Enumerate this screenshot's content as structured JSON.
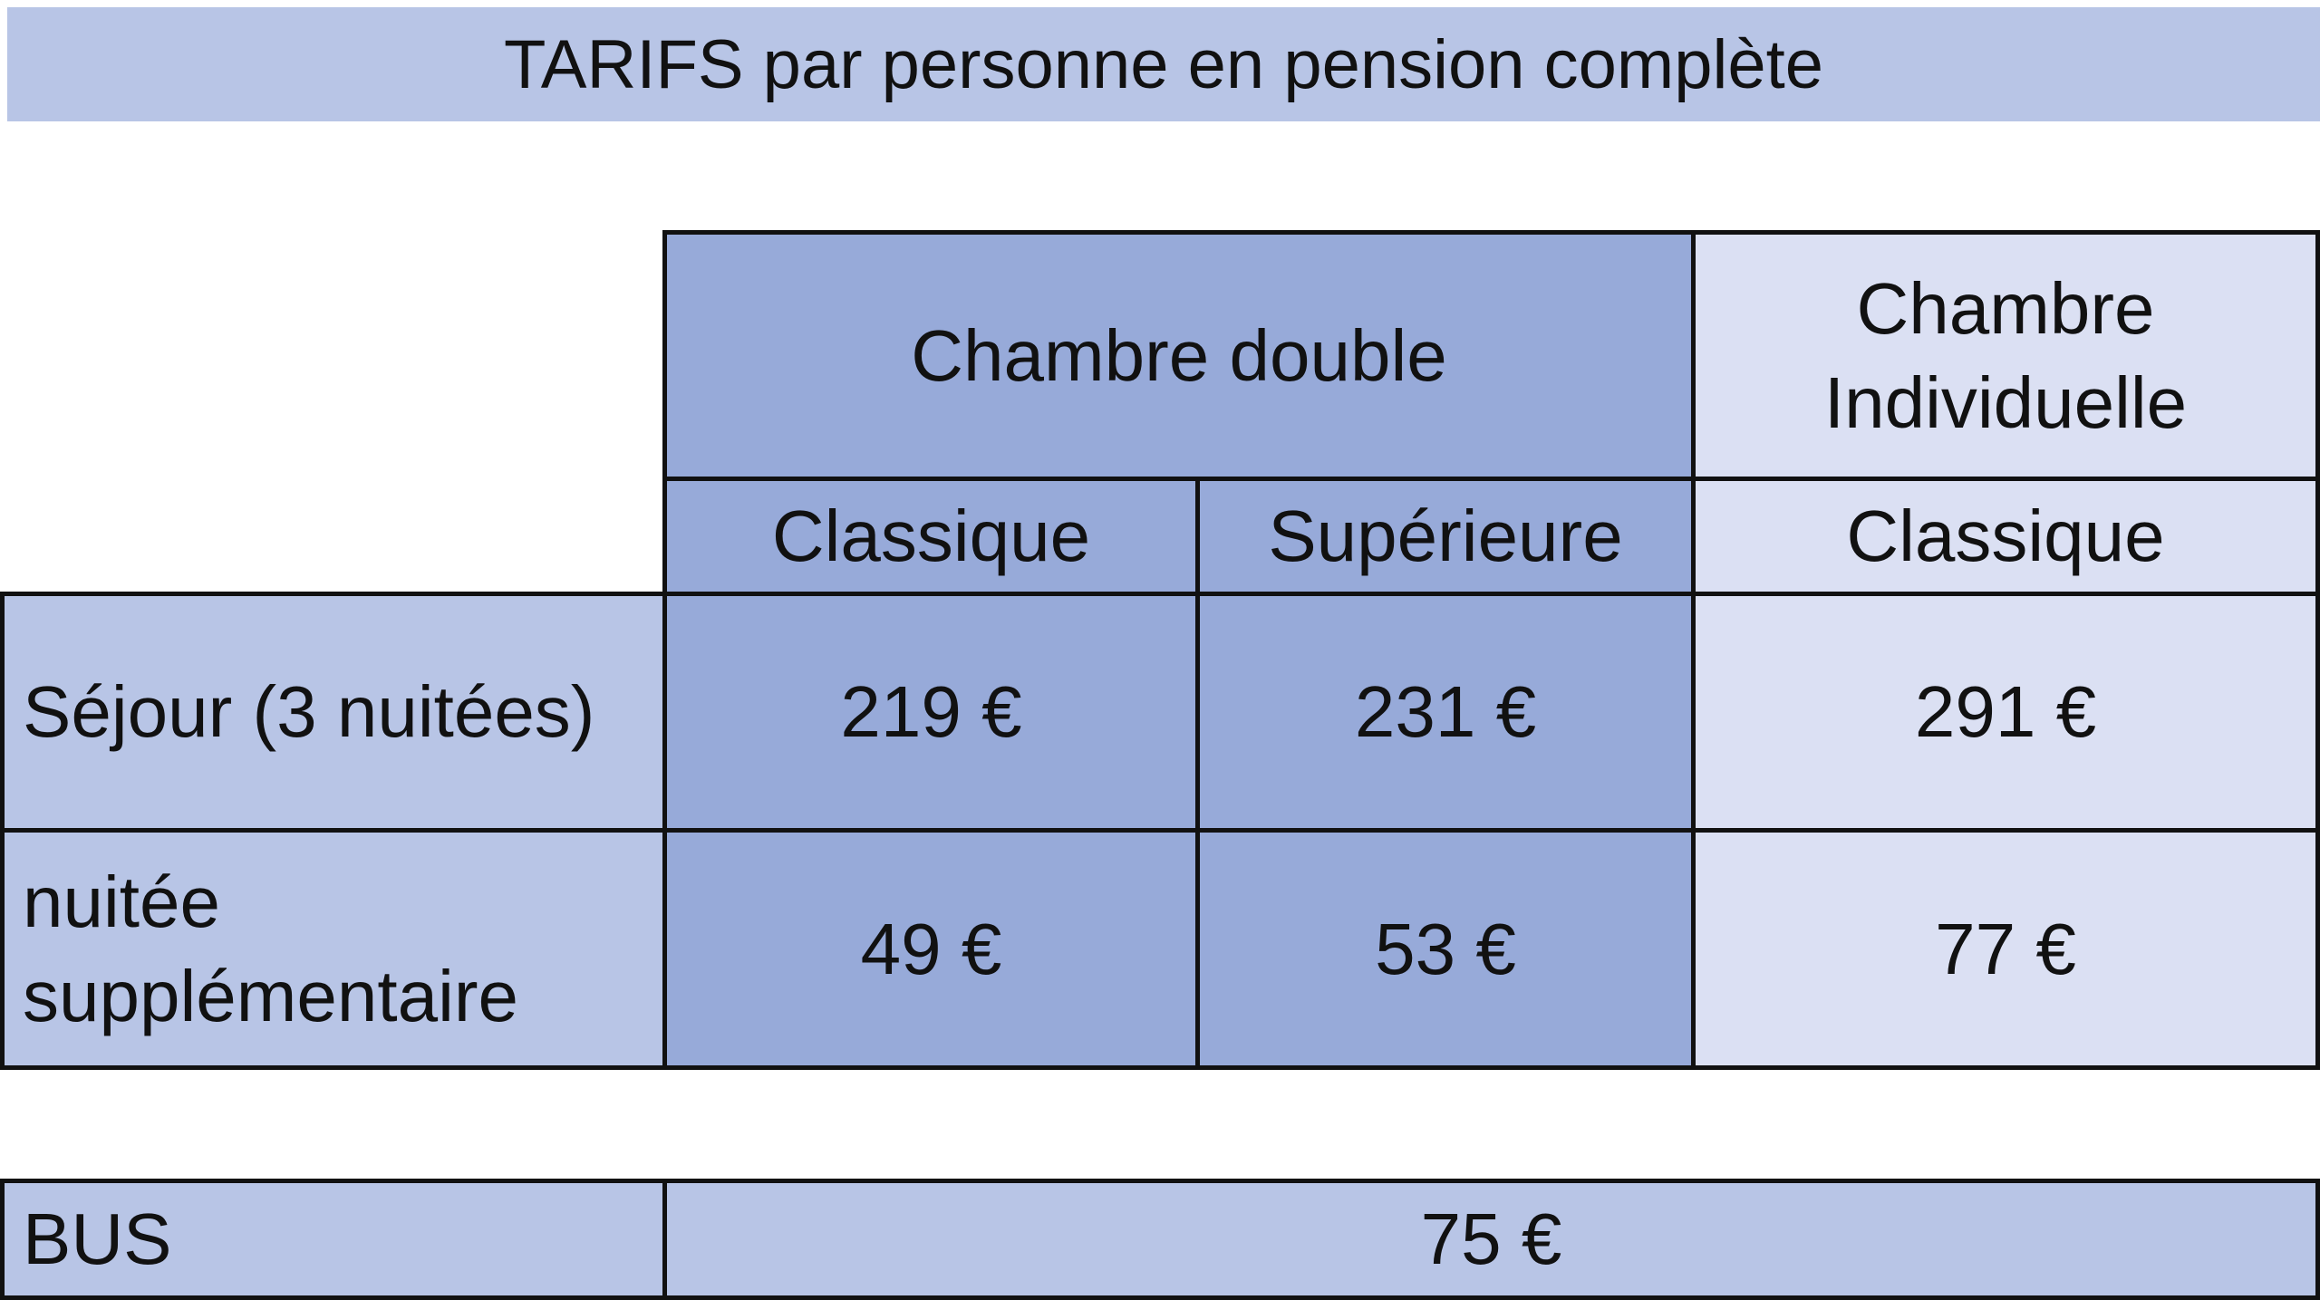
{
  "title": "TARIFS par personne en pension complète",
  "table": {
    "groups": [
      {
        "label": "Chambre double"
      },
      {
        "label": "Chambre Individuelle"
      }
    ],
    "subheaders": [
      "Classique",
      "Supérieure",
      "Classique"
    ],
    "rows": [
      {
        "label": "Séjour (3 nuitées)",
        "values": [
          "219 €",
          "231 €",
          "291 €"
        ]
      },
      {
        "label": "nuitée supplémentaire",
        "values": [
          "49 €",
          "53 €",
          "77 €"
        ]
      }
    ]
  },
  "bus": {
    "label": "BUS",
    "value": "75 €"
  },
  "colors": {
    "title_bg": "#b8c5e6",
    "double_bg": "#97aad9",
    "row_label_bg": "#b8c5e6",
    "individuelle_bg": "#dbe0f3"
  }
}
